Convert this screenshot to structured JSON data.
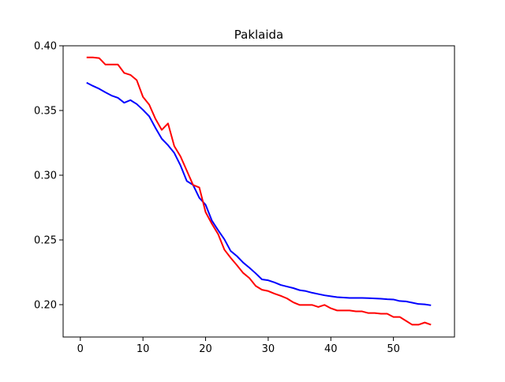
{
  "chart_data": {
    "type": "line",
    "title": "Paklaida",
    "xlabel": "",
    "ylabel": "",
    "xlim": [
      -2.75,
      59.75
    ],
    "ylim": [
      0.175,
      0.4
    ],
    "xticks": [
      0,
      10,
      20,
      30,
      40,
      50
    ],
    "yticks": [
      0.2,
      0.25,
      0.3,
      0.35,
      0.4
    ],
    "xtick_labels": [
      "0",
      "10",
      "20",
      "30",
      "40",
      "50"
    ],
    "ytick_labels": [
      "0.20",
      "0.25",
      "0.30",
      "0.35",
      "0.40"
    ],
    "grid": false,
    "legend": "none",
    "x": [
      1,
      2,
      3,
      4,
      5,
      6,
      7,
      8,
      9,
      10,
      11,
      12,
      13,
      14,
      15,
      16,
      17,
      18,
      19,
      20,
      21,
      22,
      23,
      24,
      25,
      26,
      27,
      28,
      29,
      30,
      31,
      32,
      33,
      34,
      35,
      36,
      37,
      38,
      39,
      40,
      41,
      42,
      43,
      44,
      45,
      46,
      47,
      48,
      49,
      50,
      51,
      52,
      53,
      54,
      55,
      56
    ],
    "series": [
      {
        "color": "#0000ff",
        "values": [
          0.3715,
          0.369,
          0.3668,
          0.364,
          0.3615,
          0.3598,
          0.356,
          0.358,
          0.355,
          0.3505,
          0.3455,
          0.3365,
          0.3282,
          0.3232,
          0.3172,
          0.3075,
          0.2955,
          0.2925,
          0.2825,
          0.2772,
          0.265,
          0.2575,
          0.2505,
          0.2415,
          0.2375,
          0.2325,
          0.2285,
          0.2242,
          0.2195,
          0.2188,
          0.2172,
          0.2152,
          0.214,
          0.2128,
          0.2112,
          0.2105,
          0.2092,
          0.2082,
          0.2072,
          0.2065,
          0.2058,
          0.2055,
          0.2052,
          0.2052,
          0.2052,
          0.205,
          0.2048,
          0.2046,
          0.2042,
          0.204,
          0.2028,
          0.2025,
          0.2015,
          0.2005,
          0.2002,
          0.1995
        ]
      },
      {
        "color": "#ff0000",
        "values": [
          0.391,
          0.391,
          0.3905,
          0.3855,
          0.3855,
          0.3855,
          0.379,
          0.3775,
          0.3735,
          0.3605,
          0.3545,
          0.3435,
          0.335,
          0.34,
          0.3225,
          0.3145,
          0.3035,
          0.2925,
          0.2905,
          0.2715,
          0.2625,
          0.2545,
          0.2425,
          0.2362,
          0.2305,
          0.2245,
          0.2205,
          0.2145,
          0.2115,
          0.2105,
          0.2085,
          0.2068,
          0.2048,
          0.2018,
          0.1998,
          0.1998,
          0.1998,
          0.1982,
          0.1998,
          0.1972,
          0.1955,
          0.1955,
          0.1955,
          0.1948,
          0.1948,
          0.1935,
          0.1935,
          0.193,
          0.193,
          0.1905,
          0.1905,
          0.1875,
          0.1845,
          0.1845,
          0.1862,
          0.1845
        ]
      }
    ]
  }
}
